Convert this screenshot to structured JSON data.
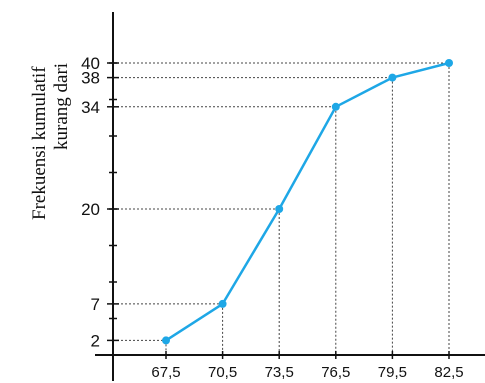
{
  "chart_data": {
    "type": "line",
    "ylabel_lines": [
      "Frekuensi kumulatif",
      "kurang dari"
    ],
    "xlabel": "",
    "x": [
      "67,5",
      "70,5",
      "73,5",
      "76,5",
      "79,5",
      "82,5"
    ],
    "y": [
      2,
      7,
      20,
      34,
      38,
      40
    ],
    "y_tick_labels": [
      "2",
      "7",
      "20",
      "34",
      "38",
      "40"
    ],
    "ylim": [
      0,
      42
    ],
    "grid": "dotted guide lines from each point to both axes",
    "line_color": "#1ea7e6",
    "marker_color": "#1ea7e6"
  }
}
